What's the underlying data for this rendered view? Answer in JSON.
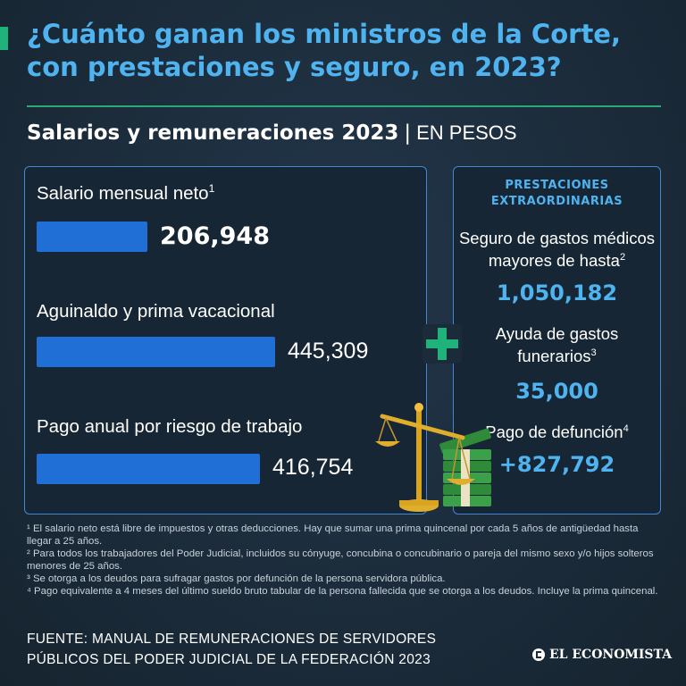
{
  "header": {
    "title_line1": "¿Cuánto ganan los ministros de la Corte,",
    "title_line2": "con prestaciones y seguro, en 2023?",
    "subtitle": "Salarios y remuneraciones 2023",
    "separator": "|",
    "unit": "EN PESOS"
  },
  "chart_data": {
    "type": "bar",
    "title": "Salarios y remuneraciones 2023",
    "unit": "EN PESOS",
    "categories": [
      "Salario mensual neto",
      "Aguinaldo y prima vacacional",
      "Pago anual por riesgo de trabajo"
    ],
    "values": [
      206948,
      445309,
      416754
    ],
    "value_labels": [
      "206,948",
      "445,309",
      "416,754"
    ],
    "footnote_marks": [
      "1",
      "",
      ""
    ],
    "xlim": [
      0,
      480000
    ]
  },
  "extras": {
    "header": "PRESTACIONES EXTRAORDINARIAS",
    "items": [
      {
        "label_line1": "Seguro de gastos médicos",
        "label_line2": "mayores de hasta",
        "mark": "2",
        "value": "1,050,182"
      },
      {
        "label_line1": "Ayuda de gastos",
        "label_line2": "funerarios",
        "mark": "3",
        "value": "35,000"
      },
      {
        "label_line1": "Pago de defunción",
        "label_line2": "",
        "mark": "4",
        "value": "+827,792"
      }
    ]
  },
  "footnotes": [
    "¹ El salario neto está libre de impuestos y otras deducciones. Hay que sumar una prima quincenal por cada 5 años de antigüedad hasta llegar a 25 años.",
    "² Para todos los trabajadores del Poder Judicial, incluidos su cónyuge, concubina o concubinario o pareja del mismo sexo y/o hijos solteros menores de 25 años.",
    "³ Se otorga a los deudos para sufragar gastos por defunción de la persona servidora pública.",
    "⁴ Pago equivalente a 4 meses del último sueldo bruto tabular de la persona fallecida que se otorga a los deudos. Incluye la prima quincenal."
  ],
  "source": {
    "line1": "FUENTE: MANUAL DE REMUNERACIONES DE SERVIDORES",
    "line2": "PÚBLICOS DEL PODER JUDICIAL DE LA FEDERACIÓN 2023"
  },
  "brand": "EL ECONOMISTA",
  "colors": {
    "background": "#1b2b3a",
    "accent": "#4fb3f0",
    "bar": "#1f6fd6",
    "green": "#1fb27a",
    "border": "#3f88d8"
  }
}
